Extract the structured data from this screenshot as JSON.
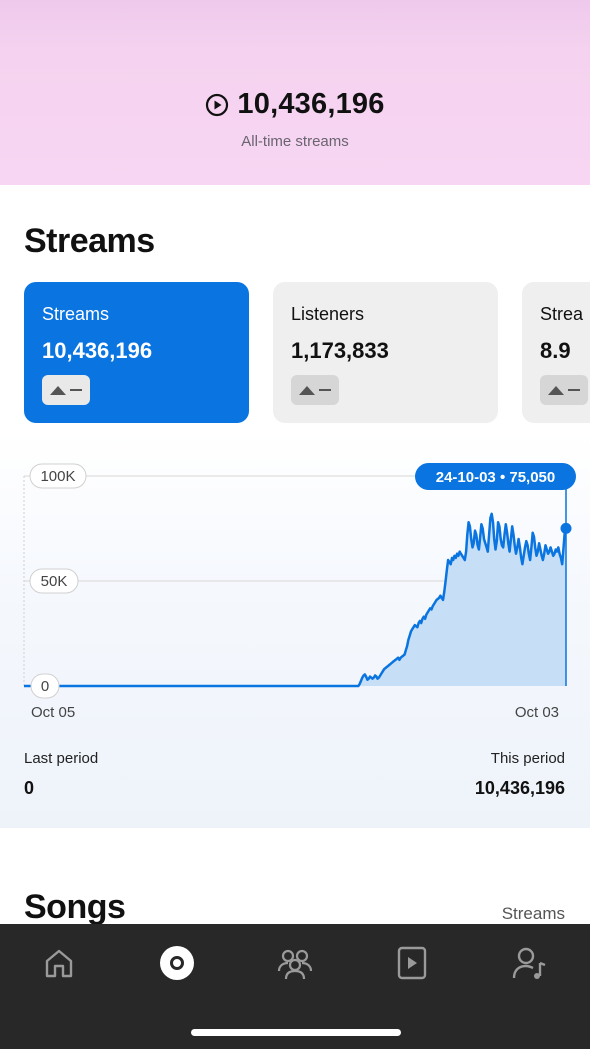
{
  "hero": {
    "value": "10,436,196",
    "label": "All-time streams",
    "icon": "play-circle-icon"
  },
  "section_title": "Streams",
  "cards": [
    {
      "label": "Streams",
      "value": "10,436,196",
      "active": true
    },
    {
      "label": "Listeners",
      "value": "1,173,833",
      "active": false
    },
    {
      "label": "Strea",
      "value": "8.9",
      "active": false
    }
  ],
  "colors": {
    "accent": "#0a74e0",
    "area_fill": "#c7dff6",
    "hero_bg": "#f5d3f0",
    "tabbar": "#282828"
  },
  "chart_data": {
    "type": "area",
    "x_start": "Oct 05",
    "x_end": "Oct 03",
    "y_ticks": [
      "0",
      "50K",
      "100K"
    ],
    "ylim": [
      0,
      100000
    ],
    "grid": true,
    "tooltip": "24-10-03 • 75,050",
    "values": [
      0,
      0,
      0,
      0,
      0,
      0,
      0,
      0,
      0,
      0,
      0,
      0,
      0,
      0,
      0,
      0,
      0,
      0,
      0,
      0,
      0,
      0,
      0,
      0,
      0,
      0,
      0,
      0,
      0,
      0,
      0,
      0,
      0,
      0,
      0,
      0,
      0,
      0,
      0,
      0,
      0,
      0,
      0,
      0,
      0,
      0,
      0,
      0,
      0,
      0,
      0,
      0,
      0,
      0,
      0,
      0,
      0,
      0,
      0,
      0,
      0,
      0,
      0,
      0,
      0,
      0,
      0,
      0,
      0,
      0,
      0,
      0,
      0,
      0,
      0,
      0,
      0,
      0,
      0,
      0,
      0,
      0,
      0,
      0,
      0,
      0,
      0,
      0,
      0,
      0,
      0,
      0,
      0,
      0,
      0,
      0,
      0,
      0,
      0,
      0,
      0,
      0,
      0,
      0,
      0,
      0,
      0,
      0,
      0,
      0,
      0,
      0,
      0,
      0,
      0,
      0,
      0,
      0,
      0,
      0,
      0,
      0,
      0,
      0,
      0,
      0,
      0,
      0,
      0,
      0,
      0,
      0,
      0,
      0,
      0,
      0,
      0,
      0,
      0,
      0,
      0,
      0,
      0,
      0,
      0,
      0,
      0,
      0,
      0,
      0,
      0,
      0,
      0,
      0,
      0,
      0,
      0,
      0,
      0,
      0,
      0,
      0,
      0,
      0,
      0,
      0,
      0,
      0,
      0,
      0,
      0,
      0,
      0,
      0,
      0,
      0,
      0,
      0,
      0,
      0,
      0,
      0,
      0,
      0,
      0,
      0,
      0,
      0,
      0,
      0,
      0,
      0,
      0,
      0,
      0,
      0,
      0,
      0,
      0,
      0,
      0,
      0,
      0,
      0,
      0,
      0,
      0,
      0,
      0,
      0,
      0,
      0,
      0,
      0,
      0,
      0,
      0,
      0,
      0,
      0,
      0,
      0,
      0,
      0,
      0,
      0,
      0,
      0,
      0,
      0,
      0,
      0,
      0,
      0,
      0,
      0,
      0,
      0,
      0,
      0,
      0,
      0,
      0,
      0,
      0,
      0,
      0,
      0,
      0,
      0,
      0,
      0,
      0,
      0,
      0,
      0,
      0,
      0,
      0,
      0,
      0,
      0,
      1000,
      2500,
      4000,
      5000,
      5500,
      4500,
      3000,
      3500,
      4500,
      4000,
      3500,
      4000,
      5000,
      4500,
      3500,
      4000,
      5000,
      6000,
      7000,
      8000,
      8500,
      9000,
      9500,
      10000,
      10500,
      11000,
      11500,
      12000,
      12500,
      13000,
      13500,
      12500,
      13500,
      14000,
      14500,
      15000,
      17000,
      19000,
      22000,
      24000,
      26000,
      27000,
      28000,
      29000,
      28500,
      28000,
      30000,
      31000,
      30000,
      32000,
      33000,
      32000,
      34000,
      35000,
      36000,
      37000,
      36500,
      38000,
      39000,
      40000,
      41000,
      41500,
      42000,
      43000,
      42000,
      41000,
      45000,
      50000,
      55000,
      60000,
      59000,
      58000,
      61000,
      60000,
      62000,
      61000,
      63000,
      62000,
      64000,
      63000,
      62000,
      61000,
      60000,
      64000,
      72000,
      78000,
      76000,
      70000,
      66000,
      68000,
      74000,
      72000,
      67000,
      65000,
      71000,
      77000,
      75000,
      70000,
      68000,
      66000,
      64000,
      72000,
      80000,
      82000,
      78000,
      70000,
      65000,
      69000,
      78000,
      76000,
      70000,
      67000,
      66000,
      72000,
      77000,
      73000,
      68000,
      64000,
      70000,
      76000,
      72000,
      67000,
      63000,
      66000,
      70000,
      66000,
      61000,
      58000,
      62000,
      66000,
      69000,
      67000,
      63000,
      60000,
      66000,
      73000,
      71000,
      66000,
      62000,
      64000,
      68000,
      65000,
      62000,
      60000,
      63000,
      67000,
      65000,
      63000,
      64000,
      66000,
      64000,
      62000,
      63000,
      65000,
      64000,
      66000,
      63000,
      61000,
      58000,
      65000,
      73000,
      75050
    ]
  },
  "periods": {
    "last_label": "Last period",
    "last_value": "0",
    "this_label": "This period",
    "this_value": "10,436,196"
  },
  "songs": {
    "title": "Songs",
    "column": "Streams"
  },
  "tabs": [
    {
      "icon": "home-icon"
    },
    {
      "icon": "music-disc-icon",
      "active": true
    },
    {
      "icon": "audience-icon"
    },
    {
      "icon": "video-icon"
    },
    {
      "icon": "profile-music-icon"
    }
  ]
}
